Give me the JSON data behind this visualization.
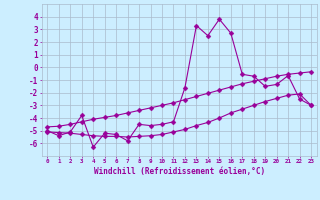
{
  "x": [
    0,
    1,
    2,
    3,
    4,
    5,
    6,
    7,
    8,
    9,
    10,
    11,
    12,
    13,
    14,
    15,
    16,
    17,
    18,
    19,
    20,
    21,
    22,
    23
  ],
  "line_main": [
    -5.0,
    -5.4,
    -5.1,
    -3.8,
    -6.3,
    -5.2,
    -5.3,
    -5.8,
    -4.5,
    -4.6,
    -4.5,
    -4.3,
    -1.6,
    3.3,
    2.5,
    3.8,
    2.7,
    -0.55,
    -0.7,
    -1.5,
    -1.35,
    -0.65,
    -2.5,
    -3.0
  ],
  "line_upper": [
    -4.7,
    -4.65,
    -4.5,
    -4.3,
    -4.1,
    -3.95,
    -3.8,
    -3.6,
    -3.4,
    -3.2,
    -3.0,
    -2.8,
    -2.55,
    -2.3,
    -2.05,
    -1.8,
    -1.55,
    -1.3,
    -1.1,
    -0.9,
    -0.7,
    -0.55,
    -0.45,
    -0.35
  ],
  "line_lower": [
    -5.1,
    -5.15,
    -5.2,
    -5.3,
    -5.4,
    -5.45,
    -5.45,
    -5.5,
    -5.45,
    -5.4,
    -5.3,
    -5.1,
    -4.9,
    -4.6,
    -4.35,
    -4.0,
    -3.6,
    -3.3,
    -3.0,
    -2.7,
    -2.45,
    -2.2,
    -2.1,
    -3.0
  ],
  "xlabel": "Windchill (Refroidissement éolien,°C)",
  "ylim": [
    -7,
    5
  ],
  "xlim": [
    -0.5,
    23.5
  ],
  "yticks": [
    -6,
    -5,
    -4,
    -3,
    -2,
    -1,
    0,
    1,
    2,
    3,
    4
  ],
  "xticks": [
    0,
    1,
    2,
    3,
    4,
    5,
    6,
    7,
    8,
    9,
    10,
    11,
    12,
    13,
    14,
    15,
    16,
    17,
    18,
    19,
    20,
    21,
    22,
    23
  ],
  "line_color": "#990099",
  "bg_color": "#cceeff",
  "grid_color": "#aabbcc",
  "markersize": 2.5
}
